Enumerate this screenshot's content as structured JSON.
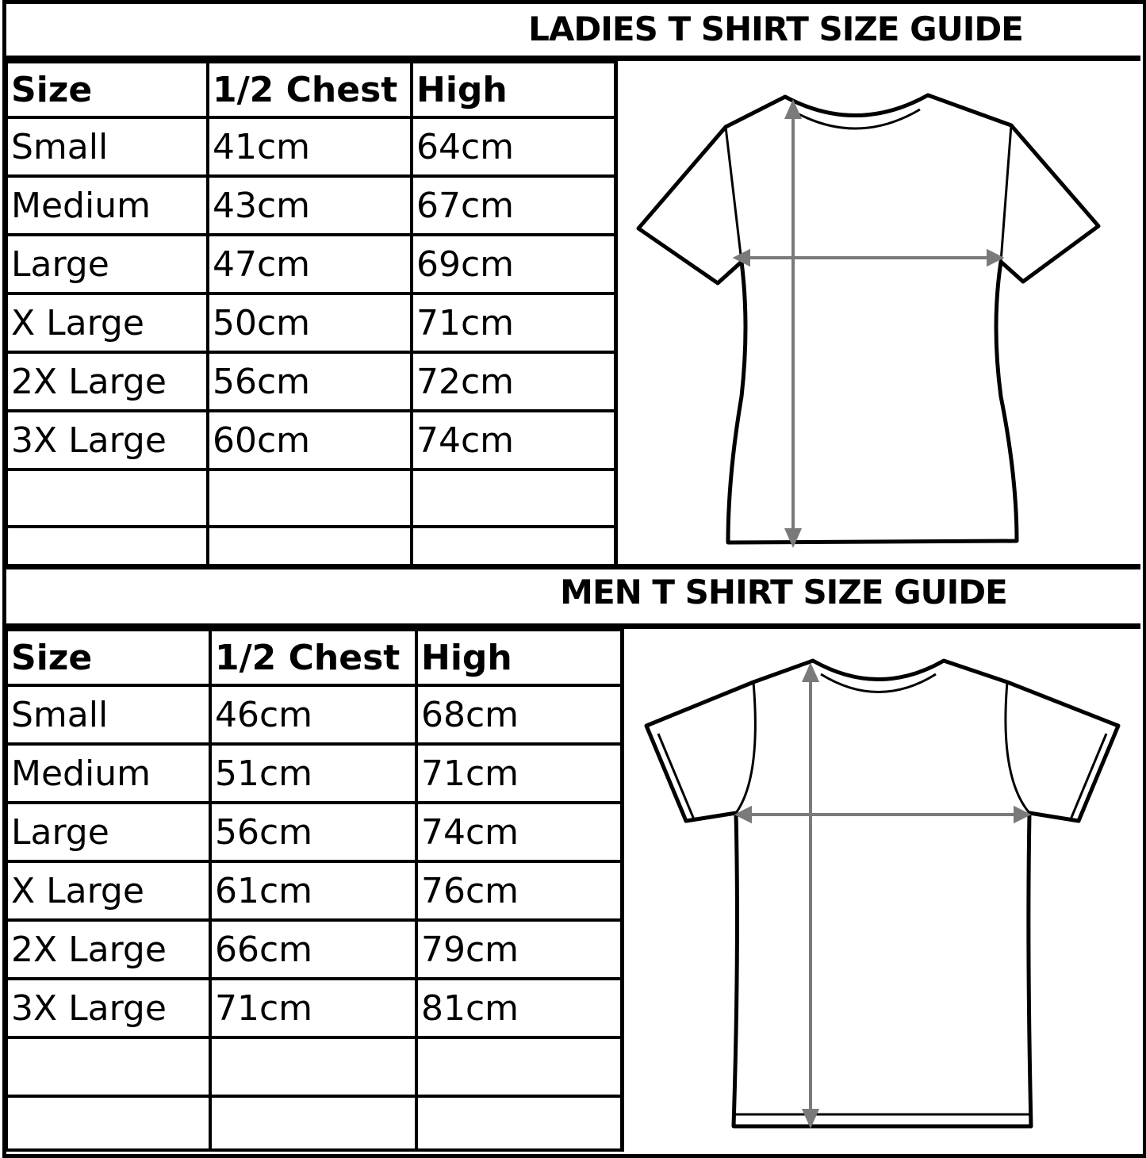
{
  "ladies": {
    "title": "LADIES T SHIRT SIZE GUIDE",
    "headers": [
      "Size",
      "1/2 Chest",
      "High"
    ],
    "rows": [
      [
        "Small",
        "41cm",
        "64cm"
      ],
      [
        "Medium",
        "43cm",
        "67cm"
      ],
      [
        "Large",
        "47cm",
        "69cm"
      ],
      [
        "X Large",
        "50cm",
        "71cm"
      ],
      [
        "2X Large",
        "56cm",
        "72cm"
      ],
      [
        "3X Large",
        "60cm",
        "74cm"
      ],
      [
        "",
        "",
        ""
      ],
      [
        "",
        "",
        ""
      ]
    ],
    "illustration": "ladies-tshirt-measurement-diagram"
  },
  "men": {
    "title": "MEN T SHIRT SIZE GUIDE",
    "headers": [
      "Size",
      "1/2 Chest",
      "High"
    ],
    "rows": [
      [
        "Small",
        "46cm",
        "68cm"
      ],
      [
        "Medium",
        "51cm",
        "71cm"
      ],
      [
        "Large",
        "56cm",
        "74cm"
      ],
      [
        "X Large",
        "61cm",
        "76cm"
      ],
      [
        "2X Large",
        "66cm",
        "79cm"
      ],
      [
        "3X Large",
        "71cm",
        "81cm"
      ],
      [
        "",
        "",
        ""
      ],
      [
        "",
        "",
        ""
      ]
    ],
    "illustration": "men-tshirt-measurement-diagram"
  },
  "colors": {
    "lines": "#000000",
    "arrows": "#7a7a7a"
  }
}
